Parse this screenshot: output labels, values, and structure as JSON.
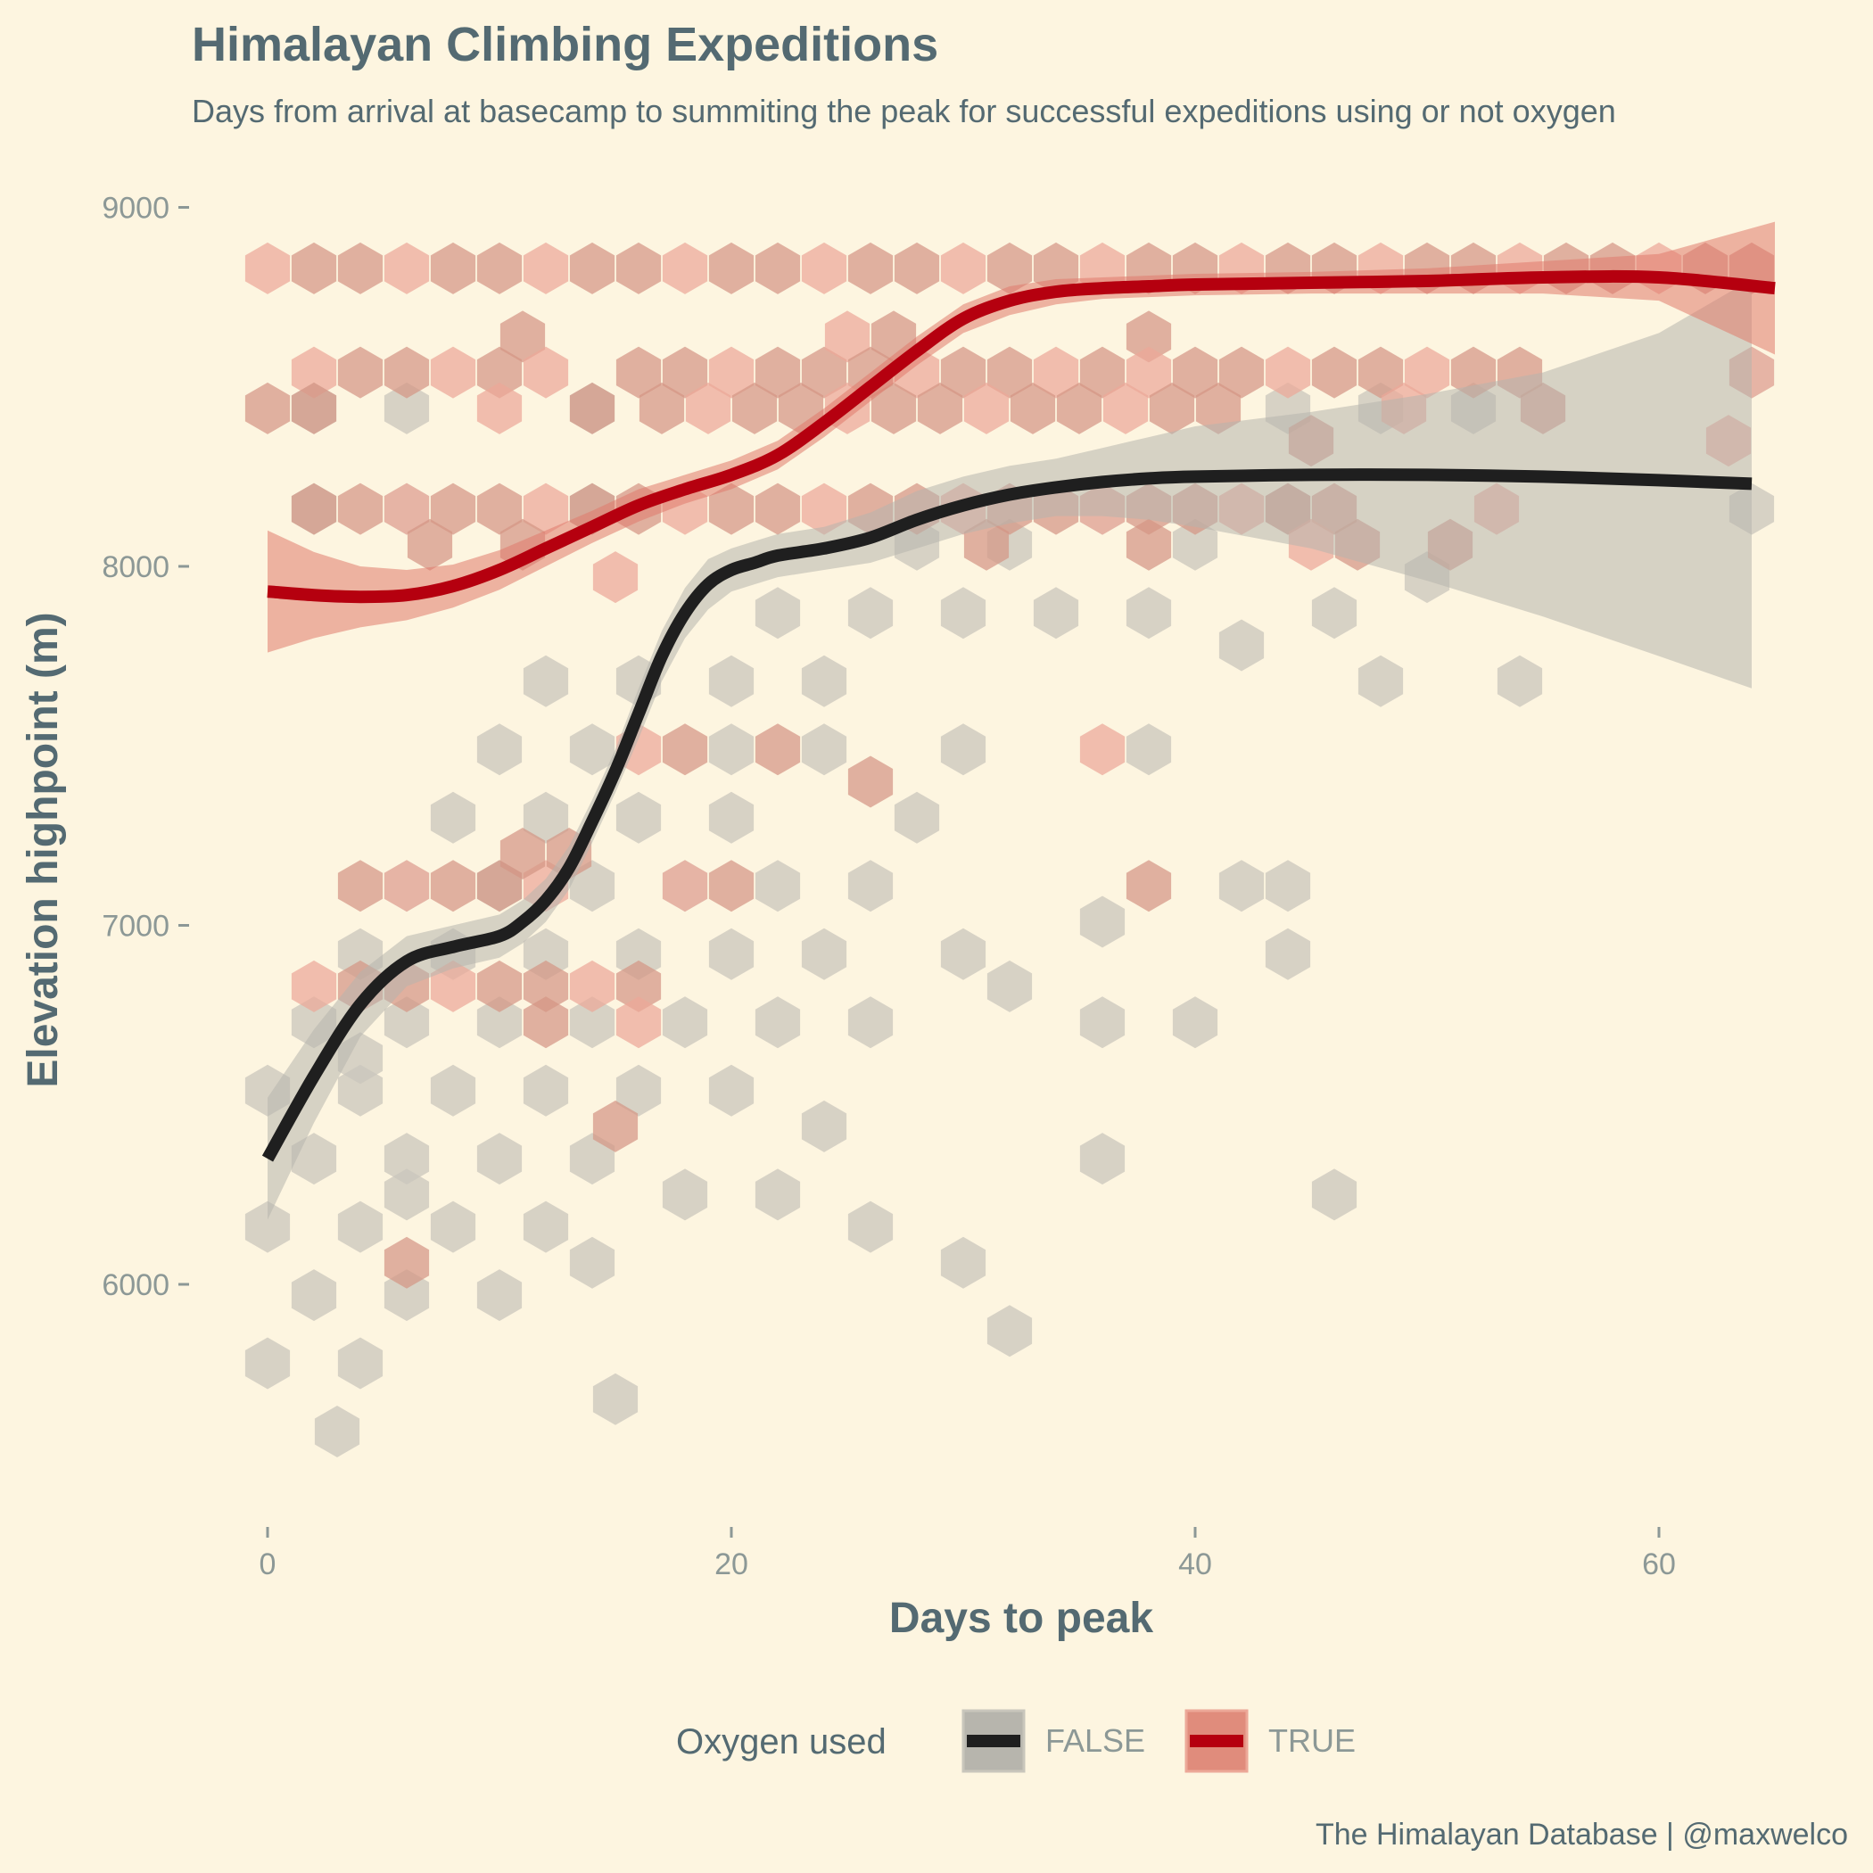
{
  "chart_data": {
    "type": "scatter",
    "subtype": "hexbin with smoothed trend lines and confidence bands",
    "title": "Himalayan Climbing Expeditions",
    "subtitle": "Days from arrival at basecamp to summiting the peak for successful expeditions using or not oxygen",
    "xlabel": "Days to peak",
    "ylabel": "Elevation highpoint (m)",
    "xlim": [
      -3,
      69
    ],
    "ylim": [
      5350,
      9320
    ],
    "xticks": [
      0,
      20,
      40,
      60
    ],
    "yticks": [
      6000,
      7000,
      8000,
      9000
    ],
    "grid": false,
    "legend": {
      "title": "Oxygen used",
      "position": "bottom",
      "entries": [
        "FALSE",
        "TRUE"
      ]
    },
    "caption": "The Himalayan Database | @maxwelco",
    "colors": {
      "background": "#fdf5e0",
      "false_line": "#1f1f1f",
      "false_hex": "#c9c6bc",
      "false_band": "#b7b5ad",
      "true_line": "#b5000f",
      "true_hex_light": "#eca898",
      "true_hex_dark": "#d49585",
      "true_band": "#e07a6c",
      "text": "#546a72",
      "tick_text": "#8c9896"
    },
    "series": [
      {
        "name": "FALSE",
        "smooth": {
          "x": [
            0,
            2,
            4,
            6,
            8,
            10,
            11,
            12,
            13,
            14,
            15,
            16,
            17,
            18,
            19,
            20,
            21,
            22,
            24,
            26,
            28,
            30,
            32,
            34,
            36,
            38,
            40,
            45,
            50,
            55,
            60,
            64
          ],
          "y": [
            6350,
            6580,
            6780,
            6900,
            6940,
            6970,
            7010,
            7070,
            7160,
            7290,
            7430,
            7590,
            7750,
            7870,
            7950,
            7990,
            8010,
            8030,
            8050,
            8080,
            8130,
            8170,
            8200,
            8220,
            8235,
            8245,
            8250,
            8255,
            8255,
            8250,
            8240,
            8230
          ],
          "lower": [
            6180,
            6450,
            6690,
            6830,
            6880,
            6910,
            6950,
            7010,
            7100,
            7230,
            7370,
            7520,
            7680,
            7800,
            7880,
            7930,
            7950,
            7970,
            7990,
            8010,
            8050,
            8090,
            8120,
            8140,
            8140,
            8130,
            8110,
            8050,
            7960,
            7860,
            7750,
            7660
          ],
          "upper": [
            6520,
            6710,
            6870,
            6970,
            7000,
            7030,
            7070,
            7130,
            7220,
            7350,
            7490,
            7660,
            7820,
            7940,
            8020,
            8050,
            8070,
            8090,
            8110,
            8150,
            8210,
            8250,
            8280,
            8300,
            8330,
            8360,
            8390,
            8430,
            8480,
            8540,
            8650,
            8800
          ]
        },
        "hexbins": [
          [
            0,
            5780
          ],
          [
            4,
            5780
          ],
          [
            2,
            5970
          ],
          [
            6,
            5970
          ],
          [
            0,
            6160
          ],
          [
            4,
            6160
          ],
          [
            8,
            6160
          ],
          [
            12,
            6160
          ],
          [
            2,
            6350
          ],
          [
            6,
            6350
          ],
          [
            10,
            6350
          ],
          [
            14,
            6350
          ],
          [
            0,
            6540
          ],
          [
            4,
            6540
          ],
          [
            8,
            6540
          ],
          [
            12,
            6540
          ],
          [
            16,
            6540
          ],
          [
            2,
            6730
          ],
          [
            6,
            6730
          ],
          [
            10,
            6730
          ],
          [
            14,
            6730
          ],
          [
            18,
            6730
          ],
          [
            22,
            6730
          ],
          [
            26,
            6730
          ],
          [
            4,
            6920
          ],
          [
            8,
            6920
          ],
          [
            12,
            6920
          ],
          [
            16,
            6920
          ],
          [
            20,
            6920
          ],
          [
            24,
            6920
          ],
          [
            30,
            6920
          ],
          [
            32,
            6830
          ],
          [
            6,
            7110
          ],
          [
            10,
            7110
          ],
          [
            14,
            7110
          ],
          [
            18,
            7110
          ],
          [
            22,
            7110
          ],
          [
            26,
            7110
          ],
          [
            8,
            7300
          ],
          [
            12,
            7300
          ],
          [
            16,
            7300
          ],
          [
            20,
            7300
          ],
          [
            28,
            7300
          ],
          [
            10,
            7490
          ],
          [
            14,
            7490
          ],
          [
            20,
            7490
          ],
          [
            24,
            7490
          ],
          [
            30,
            7490
          ],
          [
            38,
            7490
          ],
          [
            12,
            7680
          ],
          [
            16,
            7680
          ],
          [
            20,
            7680
          ],
          [
            24,
            7680
          ],
          [
            48,
            7680
          ],
          [
            54,
            7680
          ],
          [
            22,
            7870
          ],
          [
            26,
            7870
          ],
          [
            30,
            7870
          ],
          [
            34,
            7870
          ],
          [
            38,
            7870
          ],
          [
            42,
            7780
          ],
          [
            46,
            7870
          ],
          [
            28,
            8060
          ],
          [
            32,
            8060
          ],
          [
            40,
            8060
          ],
          [
            50,
            7970
          ],
          [
            2,
            8160
          ],
          [
            6,
            8160
          ],
          [
            14,
            8160
          ],
          [
            36,
            8160
          ],
          [
            44,
            8160
          ],
          [
            64,
            8160
          ],
          [
            2,
            8440
          ],
          [
            6,
            8440
          ],
          [
            14,
            8440
          ],
          [
            44,
            8440
          ],
          [
            48,
            8440
          ],
          [
            52,
            8440
          ],
          [
            64,
            8540
          ],
          [
            4,
            6630
          ],
          [
            6,
            6250
          ],
          [
            10,
            5970
          ],
          [
            14,
            6060
          ],
          [
            18,
            6250
          ],
          [
            22,
            6250
          ],
          [
            26,
            6160
          ],
          [
            30,
            6060
          ],
          [
            32,
            5870
          ],
          [
            36,
            6350
          ],
          [
            36,
            6730
          ],
          [
            40,
            6730
          ],
          [
            36,
            7010
          ],
          [
            42,
            7110
          ],
          [
            44,
            6920
          ],
          [
            46,
            6250
          ],
          [
            3,
            5590
          ],
          [
            15,
            5680
          ],
          [
            20,
            6540
          ],
          [
            24,
            6440
          ],
          [
            44,
            7110
          ]
        ]
      },
      {
        "name": "TRUE",
        "smooth": {
          "x": [
            0,
            2,
            4,
            6,
            8,
            10,
            12,
            14,
            16,
            18,
            20,
            22,
            24,
            26,
            28,
            30,
            32,
            34,
            36,
            38,
            40,
            45,
            50,
            55,
            60,
            65
          ],
          "y": [
            7930,
            7920,
            7915,
            7920,
            7945,
            7990,
            8050,
            8110,
            8170,
            8215,
            8255,
            8310,
            8400,
            8500,
            8600,
            8690,
            8740,
            8765,
            8775,
            8780,
            8785,
            8790,
            8795,
            8805,
            8805,
            8775
          ],
          "lower": [
            7760,
            7800,
            7830,
            7850,
            7885,
            7935,
            8000,
            8065,
            8125,
            8175,
            8215,
            8270,
            8360,
            8460,
            8560,
            8650,
            8700,
            8730,
            8745,
            8750,
            8755,
            8760,
            8760,
            8760,
            8740,
            8590
          ],
          "upper": [
            8100,
            8040,
            8000,
            7990,
            8005,
            8045,
            8100,
            8155,
            8215,
            8255,
            8295,
            8350,
            8440,
            8540,
            8640,
            8730,
            8780,
            8800,
            8805,
            8810,
            8815,
            8820,
            8830,
            8850,
            8870,
            8960
          ]
        },
        "hexbins": [
          [
            0,
            8830
          ],
          [
            2,
            8830
          ],
          [
            4,
            8830
          ],
          [
            6,
            8830
          ],
          [
            8,
            8830
          ],
          [
            10,
            8830
          ],
          [
            12,
            8830
          ],
          [
            14,
            8830
          ],
          [
            16,
            8830
          ],
          [
            18,
            8830
          ],
          [
            20,
            8830
          ],
          [
            22,
            8830
          ],
          [
            24,
            8830
          ],
          [
            26,
            8830
          ],
          [
            28,
            8830
          ],
          [
            30,
            8830
          ],
          [
            32,
            8830
          ],
          [
            34,
            8830
          ],
          [
            36,
            8830
          ],
          [
            38,
            8830
          ],
          [
            40,
            8830
          ],
          [
            42,
            8830
          ],
          [
            44,
            8830
          ],
          [
            46,
            8830
          ],
          [
            48,
            8830
          ],
          [
            50,
            8830
          ],
          [
            52,
            8830
          ],
          [
            54,
            8830
          ],
          [
            56,
            8830
          ],
          [
            58,
            8830
          ],
          [
            60,
            8830
          ],
          [
            62,
            8830
          ],
          [
            64,
            8830
          ],
          [
            2,
            8540
          ],
          [
            4,
            8540
          ],
          [
            6,
            8540
          ],
          [
            8,
            8540
          ],
          [
            10,
            8540
          ],
          [
            11,
            8640
          ],
          [
            12,
            8540
          ],
          [
            16,
            8540
          ],
          [
            18,
            8540
          ],
          [
            20,
            8540
          ],
          [
            22,
            8540
          ],
          [
            24,
            8540
          ],
          [
            25,
            8640
          ],
          [
            27,
            8640
          ],
          [
            26,
            8540
          ],
          [
            28,
            8540
          ],
          [
            30,
            8540
          ],
          [
            32,
            8540
          ],
          [
            34,
            8540
          ],
          [
            36,
            8540
          ],
          [
            38,
            8640
          ],
          [
            38,
            8540
          ],
          [
            40,
            8540
          ],
          [
            42,
            8540
          ],
          [
            44,
            8540
          ],
          [
            46,
            8540
          ],
          [
            48,
            8540
          ],
          [
            50,
            8540
          ],
          [
            52,
            8540
          ],
          [
            54,
            8540
          ],
          [
            64,
            8540
          ],
          [
            0,
            8440
          ],
          [
            2,
            8440
          ],
          [
            10,
            8440
          ],
          [
            14,
            8440
          ],
          [
            17,
            8440
          ],
          [
            19,
            8440
          ],
          [
            21,
            8440
          ],
          [
            23,
            8440
          ],
          [
            25,
            8440
          ],
          [
            27,
            8440
          ],
          [
            29,
            8440
          ],
          [
            31,
            8440
          ],
          [
            33,
            8440
          ],
          [
            35,
            8440
          ],
          [
            37,
            8440
          ],
          [
            39,
            8440
          ],
          [
            41,
            8440
          ],
          [
            49,
            8440
          ],
          [
            55,
            8440
          ],
          [
            45,
            8350
          ],
          [
            63,
            8350
          ],
          [
            2,
            8160
          ],
          [
            4,
            8160
          ],
          [
            6,
            8160
          ],
          [
            8,
            8160
          ],
          [
            10,
            8160
          ],
          [
            12,
            8160
          ],
          [
            14,
            8160
          ],
          [
            16,
            8160
          ],
          [
            18,
            8160
          ],
          [
            20,
            8160
          ],
          [
            22,
            8160
          ],
          [
            24,
            8160
          ],
          [
            26,
            8160
          ],
          [
            28,
            8160
          ],
          [
            30,
            8160
          ],
          [
            32,
            8160
          ],
          [
            34,
            8160
          ],
          [
            36,
            8160
          ],
          [
            38,
            8160
          ],
          [
            40,
            8160
          ],
          [
            42,
            8160
          ],
          [
            44,
            8160
          ],
          [
            46,
            8160
          ],
          [
            53,
            8160
          ],
          [
            7,
            8060
          ],
          [
            11,
            8060
          ],
          [
            15,
            7970
          ],
          [
            31,
            8060
          ],
          [
            38,
            8060
          ],
          [
            45,
            8060
          ],
          [
            47,
            8060
          ],
          [
            51,
            8060
          ],
          [
            16,
            7490
          ],
          [
            18,
            7490
          ],
          [
            22,
            7490
          ],
          [
            36,
            7490
          ],
          [
            26,
            7400
          ],
          [
            4,
            7110
          ],
          [
            6,
            7110
          ],
          [
            8,
            7110
          ],
          [
            10,
            7110
          ],
          [
            12,
            7110
          ],
          [
            11,
            7200
          ],
          [
            13,
            7200
          ],
          [
            18,
            7110
          ],
          [
            20,
            7110
          ],
          [
            38,
            7110
          ],
          [
            2,
            6830
          ],
          [
            4,
            6830
          ],
          [
            6,
            6830
          ],
          [
            8,
            6830
          ],
          [
            10,
            6830
          ],
          [
            12,
            6830
          ],
          [
            14,
            6830
          ],
          [
            16,
            6830
          ],
          [
            12,
            6730
          ],
          [
            16,
            6730
          ],
          [
            15,
            6440
          ],
          [
            6,
            6060
          ]
        ]
      }
    ]
  }
}
